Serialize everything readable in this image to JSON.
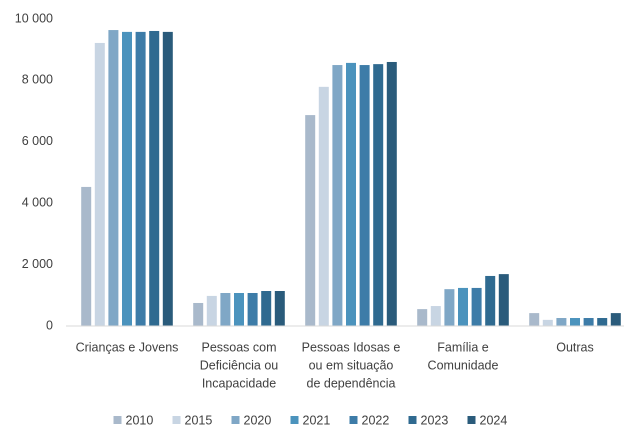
{
  "chart_data": {
    "type": "bar",
    "categories": [
      [
        "Crianças e Jovens"
      ],
      [
        "Pessoas com",
        "Deficiência ou",
        "Incapacidade"
      ],
      [
        "Pessoas Idosas e",
        "ou em situação",
        "de dependência"
      ],
      [
        "Família e",
        "Comunidade"
      ],
      [
        "Outras"
      ]
    ],
    "series": [
      {
        "name": "2010",
        "color": "#a9b9cb",
        "values": [
          4530,
          750,
          6870,
          550,
          420
        ]
      },
      {
        "name": "2015",
        "color": "#c8d5e3",
        "values": [
          9220,
          980,
          7790,
          650,
          200
        ]
      },
      {
        "name": "2020",
        "color": "#7fa7c6",
        "values": [
          9640,
          1075,
          8500,
          1200,
          260
        ]
      },
      {
        "name": "2021",
        "color": "#4b93bd",
        "values": [
          9580,
          1075,
          8570,
          1240,
          260
        ]
      },
      {
        "name": "2022",
        "color": "#3d7ca8",
        "values": [
          9580,
          1075,
          8500,
          1240,
          260
        ]
      },
      {
        "name": "2023",
        "color": "#2f6a90",
        "values": [
          9610,
          1140,
          8530,
          1630,
          260
        ]
      },
      {
        "name": "2024",
        "color": "#2a5b7b",
        "values": [
          9580,
          1140,
          8600,
          1690,
          420
        ]
      }
    ],
    "ylim": [
      0,
      10000
    ],
    "yticks": [
      0,
      {
        "value": 2000,
        "label": "2 000"
      },
      {
        "value": 4000,
        "label": "4 000"
      },
      {
        "value": 6000,
        "label": "6 000"
      },
      {
        "value": 8000,
        "label": "8 000"
      },
      {
        "value": 10000,
        "label": "10 000"
      }
    ],
    "legend": "bottom"
  }
}
